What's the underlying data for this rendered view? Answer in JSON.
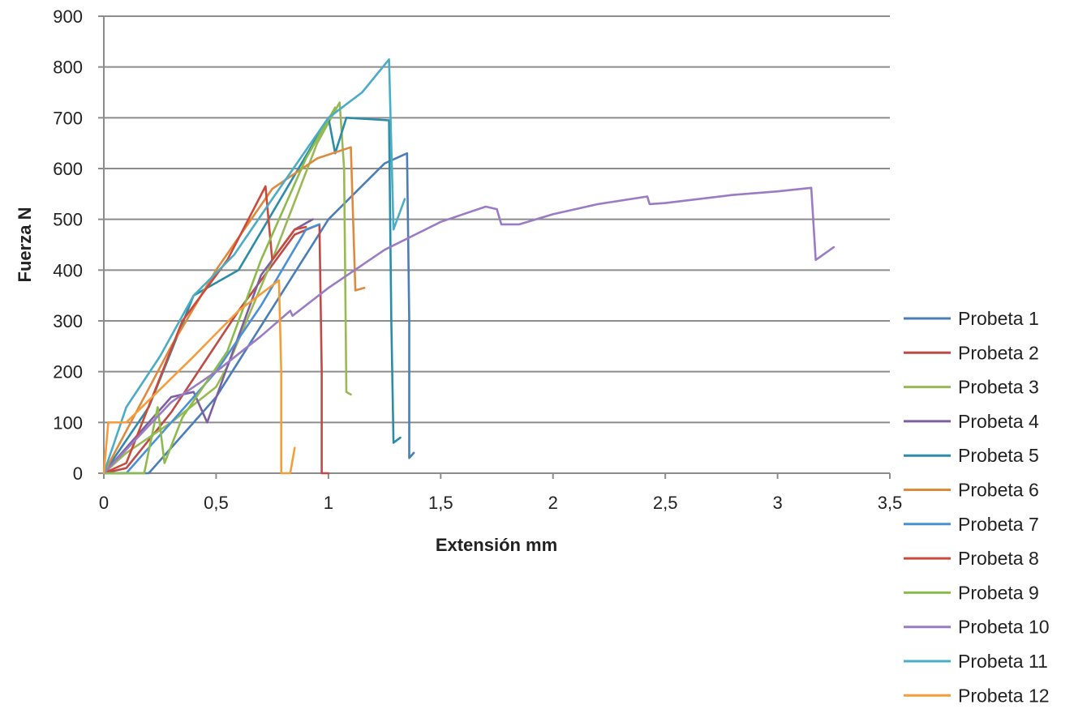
{
  "chart_data": {
    "type": "line",
    "title": "",
    "xlabel": "Extensión mm",
    "ylabel": "Fuerza N",
    "xlim": [
      0,
      3.5
    ],
    "ylim": [
      0,
      900
    ],
    "x_ticks": [
      0,
      0.5,
      1,
      1.5,
      2,
      2.5,
      3,
      3.5
    ],
    "x_tick_labels": [
      "0",
      "0,5",
      "1",
      "1,5",
      "2",
      "2,5",
      "3",
      "3,5"
    ],
    "y_ticks": [
      0,
      100,
      200,
      300,
      400,
      500,
      600,
      700,
      800,
      900
    ],
    "y_tick_labels": [
      "0",
      "100",
      "200",
      "300",
      "400",
      "500",
      "600",
      "700",
      "800",
      "900"
    ],
    "grid": "horizontal",
    "legend_position": "right",
    "series": [
      {
        "name": "Probeta 1",
        "color": "#4a7ebb",
        "points": [
          [
            0,
            0
          ],
          [
            0.2,
            0
          ],
          [
            0.5,
            150
          ],
          [
            1.0,
            500
          ],
          [
            1.25,
            610
          ],
          [
            1.35,
            630
          ],
          [
            1.36,
            300
          ],
          [
            1.36,
            30
          ],
          [
            1.38,
            40
          ]
        ]
      },
      {
        "name": "Probeta 2",
        "color": "#be4b48",
        "points": [
          [
            0,
            0
          ],
          [
            0.1,
            10
          ],
          [
            0.3,
            120
          ],
          [
            0.6,
            320
          ],
          [
            0.85,
            470
          ],
          [
            0.96,
            490
          ],
          [
            0.97,
            200
          ],
          [
            0.97,
            0
          ],
          [
            1.0,
            0
          ]
        ]
      },
      {
        "name": "Probeta 3",
        "color": "#98b954",
        "points": [
          [
            0,
            0
          ],
          [
            0.1,
            40
          ],
          [
            0.3,
            100
          ],
          [
            0.5,
            170
          ],
          [
            0.55,
            210
          ],
          [
            0.75,
            420
          ],
          [
            0.95,
            650
          ],
          [
            1.05,
            730
          ],
          [
            1.07,
            600
          ],
          [
            1.08,
            160
          ],
          [
            1.1,
            155
          ]
        ]
      },
      {
        "name": "Probeta 4",
        "color": "#7d60a0",
        "points": [
          [
            0,
            0
          ],
          [
            0.3,
            150
          ],
          [
            0.4,
            160
          ],
          [
            0.46,
            100
          ],
          [
            0.55,
            210
          ],
          [
            0.7,
            390
          ],
          [
            0.85,
            480
          ],
          [
            0.93,
            500
          ]
        ]
      },
      {
        "name": "Probeta 5",
        "color": "#2d8ca8",
        "points": [
          [
            0,
            0
          ],
          [
            0.2,
            130
          ],
          [
            0.4,
            350
          ],
          [
            0.6,
            400
          ],
          [
            0.8,
            550
          ],
          [
            1.0,
            700
          ],
          [
            1.03,
            630
          ],
          [
            1.08,
            700
          ],
          [
            1.27,
            695
          ],
          [
            1.28,
            300
          ],
          [
            1.29,
            60
          ],
          [
            1.32,
            70
          ]
        ]
      },
      {
        "name": "Probeta 6",
        "color": "#dd8a3e",
        "points": [
          [
            0,
            0
          ],
          [
            0.3,
            250
          ],
          [
            0.5,
            400
          ],
          [
            0.75,
            560
          ],
          [
            0.95,
            620
          ],
          [
            1.1,
            642
          ],
          [
            1.12,
            360
          ],
          [
            1.16,
            365
          ]
        ]
      },
      {
        "name": "Probeta 7",
        "color": "#4a90d9",
        "points": [
          [
            0,
            0
          ],
          [
            0.1,
            0
          ],
          [
            0.3,
            100
          ],
          [
            0.5,
            200
          ],
          [
            0.7,
            330
          ],
          [
            0.9,
            480
          ],
          [
            0.96,
            490
          ]
        ]
      },
      {
        "name": "Probeta 8",
        "color": "#cc4a3a",
        "points": [
          [
            0,
            0
          ],
          [
            0.1,
            20
          ],
          [
            0.35,
            300
          ],
          [
            0.55,
            420
          ],
          [
            0.72,
            565
          ],
          [
            0.75,
            420
          ],
          [
            0.8,
            450
          ],
          [
            0.85,
            480
          ],
          [
            0.9,
            485
          ]
        ]
      },
      {
        "name": "Probeta 9",
        "color": "#8dbb4b",
        "points": [
          [
            0,
            0
          ],
          [
            0.18,
            0
          ],
          [
            0.24,
            130
          ],
          [
            0.27,
            20
          ],
          [
            0.35,
            110
          ],
          [
            0.55,
            240
          ],
          [
            0.7,
            420
          ],
          [
            0.9,
            620
          ],
          [
            1.03,
            720
          ]
        ]
      },
      {
        "name": "Probeta 10",
        "color": "#9b7cc4",
        "points": [
          [
            0,
            0
          ],
          [
            0.3,
            140
          ],
          [
            0.5,
            200
          ],
          [
            0.7,
            270
          ],
          [
            0.83,
            320
          ],
          [
            0.84,
            310
          ],
          [
            1.0,
            365
          ],
          [
            1.25,
            440
          ],
          [
            1.5,
            495
          ],
          [
            1.7,
            525
          ],
          [
            1.75,
            520
          ],
          [
            1.77,
            490
          ],
          [
            1.85,
            490
          ],
          [
            2.0,
            510
          ],
          [
            2.2,
            530
          ],
          [
            2.42,
            545
          ],
          [
            2.43,
            530
          ],
          [
            2.5,
            532
          ],
          [
            2.8,
            548
          ],
          [
            3.0,
            555
          ],
          [
            3.15,
            562
          ],
          [
            3.17,
            420
          ],
          [
            3.25,
            445
          ]
        ]
      },
      {
        "name": "Probeta 11",
        "color": "#4bacc6",
        "points": [
          [
            0,
            0
          ],
          [
            0.1,
            130
          ],
          [
            0.25,
            230
          ],
          [
            0.4,
            350
          ],
          [
            0.58,
            430
          ],
          [
            0.75,
            540
          ],
          [
            1.0,
            700
          ],
          [
            1.15,
            750
          ],
          [
            1.27,
            815
          ],
          [
            1.29,
            480
          ],
          [
            1.34,
            540
          ]
        ]
      },
      {
        "name": "Probeta 12",
        "color": "#f59d3b",
        "points": [
          [
            0,
            0
          ],
          [
            0.02,
            100
          ],
          [
            0.1,
            100
          ],
          [
            0.4,
            230
          ],
          [
            0.6,
            320
          ],
          [
            0.78,
            380
          ],
          [
            0.79,
            200
          ],
          [
            0.79,
            0
          ],
          [
            0.83,
            0
          ],
          [
            0.85,
            50
          ]
        ]
      }
    ]
  }
}
